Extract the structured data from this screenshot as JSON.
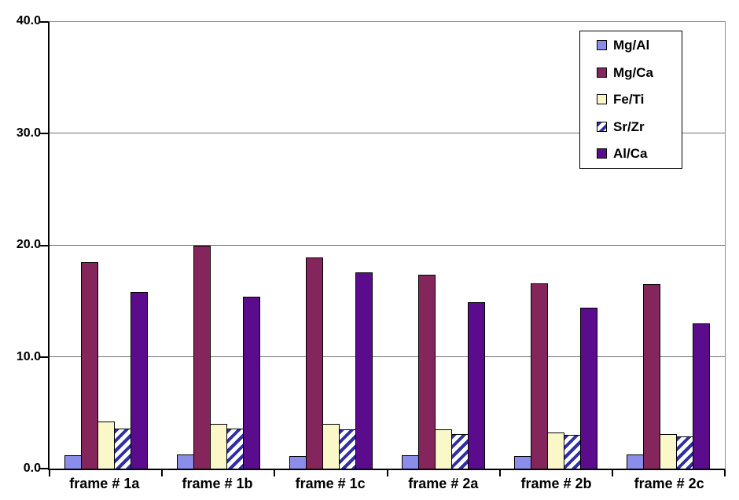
{
  "chart_data": {
    "type": "bar",
    "title": "",
    "xlabel": "",
    "ylabel": "",
    "categories": [
      "frame # 1a",
      "frame # 1b",
      "frame # 1c",
      "frame # 2a",
      "frame # 2b",
      "frame # 2c"
    ],
    "series": [
      {
        "name": "Mg/Al",
        "color": "#8A8DE9",
        "values": [
          1.2,
          1.3,
          1.1,
          1.2,
          1.1,
          1.3
        ]
      },
      {
        "name": "Mg/Ca",
        "color": "#84265B",
        "values": [
          18.5,
          20.0,
          18.9,
          17.4,
          16.6,
          16.5
        ]
      },
      {
        "name": "Fe/Ti",
        "color": "#FAF7C8",
        "values": [
          4.2,
          4.0,
          4.0,
          3.5,
          3.2,
          3.1
        ]
      },
      {
        "name": "Sr/Zr",
        "color": "#2D2FA3",
        "pattern": "diagonal-stripes",
        "pattern_bg": "#FFFFFF",
        "values": [
          3.6,
          3.6,
          3.5,
          3.1,
          3.0,
          2.9
        ]
      },
      {
        "name": "Al/Ca",
        "color": "#5B0C8D",
        "values": [
          15.8,
          15.4,
          17.6,
          14.9,
          14.4,
          13.0
        ]
      }
    ],
    "ylim": [
      0,
      40
    ],
    "yticks": [
      "0.0",
      "10.0",
      "20.0",
      "30.0",
      "40.0"
    ],
    "grid": true,
    "gridline_color": "#707070",
    "axis_color": "#000000",
    "legend_position": "top-right",
    "legend_entries": [
      "Mg/Al",
      "Mg/Ca",
      "Fe/Ti",
      "Sr/Zr",
      "Al/Ca"
    ]
  }
}
